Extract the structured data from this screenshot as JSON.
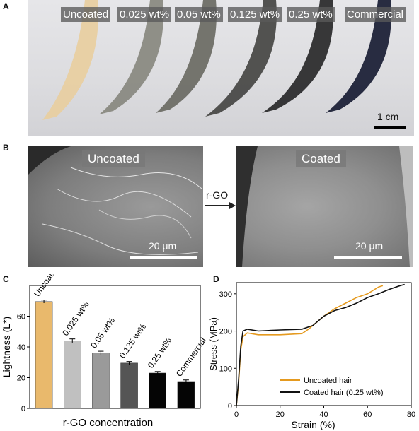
{
  "panels": {
    "a": "A",
    "b": "B",
    "c": "C",
    "d": "D"
  },
  "panel_a": {
    "labels": [
      "Uncoated",
      "0.025 wt%",
      "0.05 wt%",
      "0.125 wt%",
      "0.25 wt%",
      "Commercial"
    ],
    "scale": "1 cm",
    "hair_colors": [
      "#e8cfa1",
      "#8a8a82",
      "#6e6e66",
      "#4a4a48",
      "#2d2d2e",
      "#1e2238"
    ]
  },
  "panel_b": {
    "left_label": "Uncoated",
    "right_label": "Coated",
    "arrow_label": "r-GO",
    "scale_left": "20 μm",
    "scale_right": "20 μm"
  },
  "chart_data": [
    {
      "type": "bar",
      "categories": [
        "Uncoated",
        "0.025 wt%",
        "0.05 wt%",
        "0.125 wt%",
        "0.25 wt%",
        "Commercial"
      ],
      "values": [
        69.5,
        44,
        36,
        29.5,
        23,
        17.5
      ],
      "errors": [
        1.0,
        1.2,
        1.2,
        1.0,
        1.0,
        1.0
      ],
      "colors": [
        "#e9b96c",
        "#c0c0c0",
        "#9a9a9a",
        "#555555",
        "#050505",
        "#050505"
      ],
      "title": "",
      "xlabel": "r-GO concentration",
      "ylabel": "Lightness (L*)",
      "ylim": [
        0,
        80
      ],
      "yticks": [
        "0",
        "20",
        "40",
        "60"
      ]
    },
    {
      "type": "line",
      "title": "",
      "xlabel": "Strain (%)",
      "ylabel": "Stress (MPa)",
      "xlim": [
        0,
        80
      ],
      "ylim": [
        0,
        330
      ],
      "xticks": [
        "0",
        "20",
        "40",
        "60",
        "80"
      ],
      "yticks": [
        "0",
        "100",
        "200",
        "300"
      ],
      "series": [
        {
          "name": "Uncoated hair",
          "color": "#e59a1f",
          "x": [
            0,
            1,
            2,
            3,
            5,
            10,
            20,
            30,
            33,
            36,
            40,
            45,
            50,
            55,
            60,
            65,
            67
          ],
          "y": [
            0,
            60,
            150,
            185,
            195,
            190,
            190,
            193,
            205,
            220,
            240,
            260,
            275,
            290,
            300,
            318,
            322
          ]
        },
        {
          "name": "Coated hair (0.25 wt%)",
          "color": "#111111",
          "x": [
            0,
            1,
            2,
            3,
            5,
            10,
            20,
            30,
            35,
            40,
            45,
            50,
            55,
            60,
            65,
            70,
            75,
            77
          ],
          "y": [
            0,
            70,
            160,
            200,
            205,
            200,
            203,
            205,
            215,
            240,
            255,
            263,
            275,
            290,
            300,
            312,
            322,
            325
          ]
        }
      ]
    }
  ]
}
